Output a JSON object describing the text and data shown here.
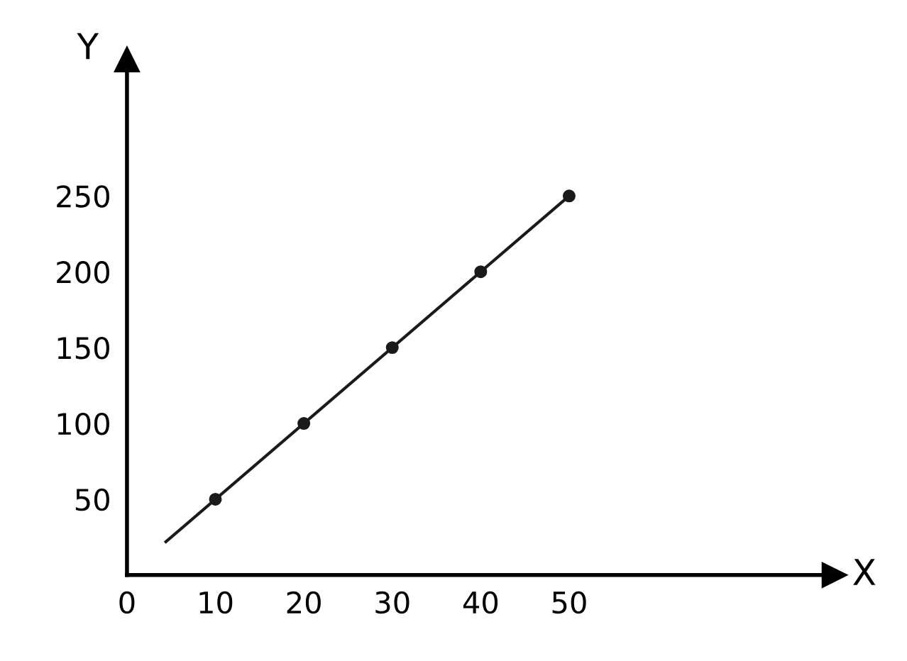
{
  "chart_data": {
    "type": "line",
    "xlabel": "X",
    "ylabel": "Y",
    "xlim": [
      0,
      80
    ],
    "ylim": [
      0,
      340
    ],
    "xticks": [
      {
        "value": 0,
        "label": "0"
      },
      10,
      20,
      30,
      40,
      50
    ],
    "yticks": [
      50,
      100,
      150,
      200,
      250
    ],
    "grid": false,
    "legend": false,
    "series": [
      {
        "color": "#1a1a1a",
        "x": [
          4.4,
          50
        ],
        "values": [
          22,
          250
        ],
        "marker": "none",
        "line_style": "solid"
      },
      {
        "type": "scatter",
        "color": "#1a1a1a",
        "x": [
          10,
          20,
          30,
          40,
          50
        ],
        "values": [
          50,
          100,
          150,
          200,
          250
        ],
        "marker": "circle"
      }
    ]
  }
}
